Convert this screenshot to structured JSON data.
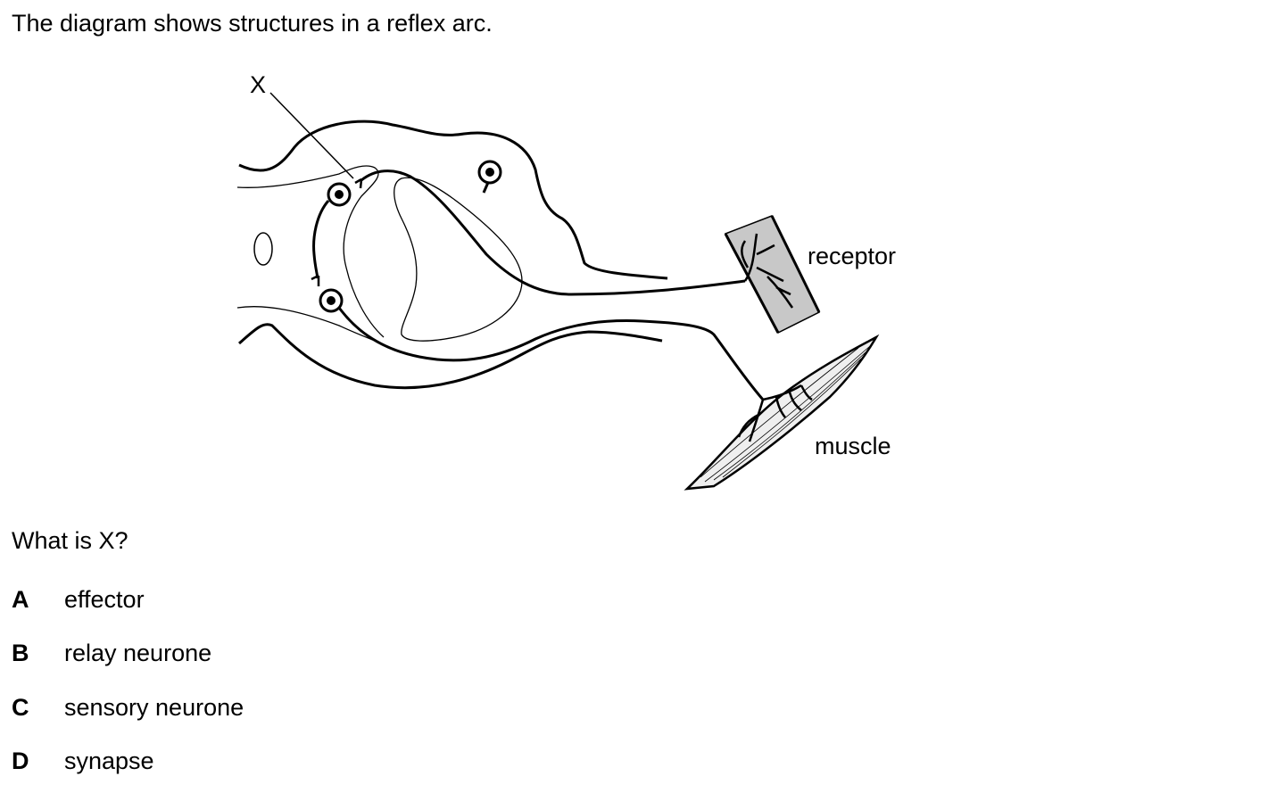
{
  "intro_text": "The diagram shows structures in a reflex arc.",
  "diagram": {
    "label_x": "X",
    "label_receptor": "receptor",
    "label_muscle": "muscle"
  },
  "question": "What is X?",
  "options": [
    {
      "letter": "A",
      "text": "effector"
    },
    {
      "letter": "B",
      "text": "relay neurone"
    },
    {
      "letter": "C",
      "text": "sensory neurone"
    },
    {
      "letter": "D",
      "text": "synapse"
    }
  ]
}
